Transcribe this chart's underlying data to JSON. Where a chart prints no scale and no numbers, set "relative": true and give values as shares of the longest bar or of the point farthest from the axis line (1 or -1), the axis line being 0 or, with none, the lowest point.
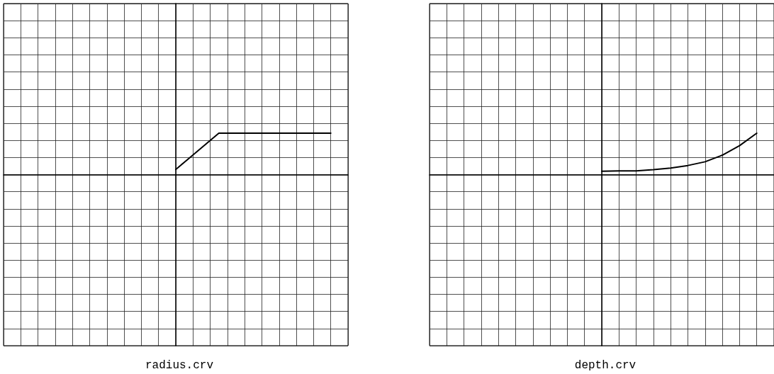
{
  "chart_data": [
    {
      "type": "line",
      "xlabel": "radius.crv",
      "relative": true,
      "grid": true,
      "tick_labels": false,
      "marker": "none",
      "line_style": "solid",
      "color": "#000000",
      "categories": [
        null,
        null,
        null,
        null,
        null,
        null,
        null,
        null,
        null,
        null,
        null,
        null,
        null,
        null,
        null,
        null,
        null,
        null,
        null,
        null,
        null,
        null,
        null,
        null,
        null,
        null,
        null,
        null,
        null,
        null,
        null,
        null,
        null,
        null,
        null,
        null,
        null,
        null,
        null,
        null,
        null
      ],
      "values": [
        null,
        null,
        null,
        null,
        null,
        null,
        null,
        null,
        null,
        null,
        null,
        null,
        null,
        null,
        null,
        null,
        null,
        null,
        null,
        null,
        0.125,
        0.3,
        0.475,
        0.65,
        0.825,
        1,
        1,
        1,
        1,
        1,
        1,
        1,
        1,
        1,
        1,
        1,
        1,
        1,
        1,
        null,
        null
      ]
    },
    {
      "type": "line",
      "xlabel": "depth.crv",
      "relative": true,
      "grid": true,
      "tick_labels": false,
      "marker": "none",
      "line_style": "solid",
      "color": "#000000",
      "categories": [
        null,
        null,
        null,
        null,
        null,
        null,
        null,
        null,
        null,
        null,
        null,
        null,
        null,
        null,
        null,
        null,
        null,
        null,
        null,
        null,
        null
      ],
      "values": [
        null,
        null,
        null,
        null,
        null,
        null,
        null,
        null,
        null,
        null,
        0.08,
        0.09,
        0.09,
        0.12,
        0.16,
        0.22,
        0.31,
        0.47,
        0.7,
        1,
        null
      ]
    }
  ]
}
